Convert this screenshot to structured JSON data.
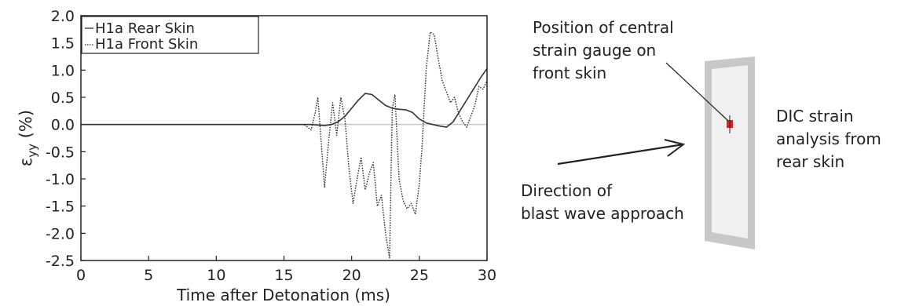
{
  "chart_data": {
    "type": "line",
    "xlabel": "Time after Detonation (ms)",
    "ylabel": "ε",
    "ylabel_subscript": "yy",
    "ylabel_unit": "(%)",
    "xlim": [
      0,
      30
    ],
    "ylim": [
      -2.5,
      2.0
    ],
    "x_ticks": [
      "0",
      "5",
      "10",
      "15",
      "20",
      "25",
      "30"
    ],
    "y_ticks": [
      "2.0",
      "1.5",
      "1.0",
      "0.5",
      "0.0",
      "-0.5",
      "-1.0",
      "-1.5",
      "-2.0",
      "-2.5"
    ],
    "grid": false,
    "legend_position": "top-left",
    "series": [
      {
        "name": "H1a Rear Skin",
        "style": "solid",
        "x": [
          0,
          16,
          17,
          18,
          18.5,
          19,
          19.5,
          20,
          20.5,
          21,
          21.5,
          22,
          22.5,
          23,
          23.5,
          24,
          24.5,
          25,
          25.5,
          26,
          26.5,
          27,
          27.5,
          28,
          28.5,
          29,
          29.5,
          30
        ],
        "y": [
          0,
          0,
          0,
          -0.02,
          0,
          0.05,
          0.15,
          0.3,
          0.45,
          0.57,
          0.55,
          0.45,
          0.35,
          0.3,
          0.28,
          0.27,
          0.22,
          0.1,
          0.03,
          0,
          -0.03,
          -0.05,
          0.05,
          0.25,
          0.45,
          0.65,
          0.85,
          1.03
        ]
      },
      {
        "name": "H1a Front Skin",
        "style": "dotted",
        "x": [
          0,
          16.5,
          17,
          17.3,
          17.5,
          17.8,
          18,
          18.3,
          18.6,
          18.9,
          19.2,
          19.5,
          19.8,
          20.1,
          20.4,
          20.7,
          21,
          21.3,
          21.6,
          21.9,
          22.2,
          22.5,
          22.8,
          23,
          23.2,
          23.5,
          23.8,
          24.1,
          24.4,
          24.7,
          25,
          25.2,
          25.5,
          25.8,
          26.1,
          26.4,
          26.7,
          27,
          27.3,
          27.6,
          27.9,
          28.2,
          28.5,
          28.8,
          29.1,
          29.4,
          29.7,
          30
        ],
        "y": [
          0,
          0,
          -0.1,
          0.2,
          0.5,
          -0.5,
          -1.15,
          -0.3,
          0.4,
          -0.2,
          0.5,
          0.1,
          -0.8,
          -1.45,
          -1.0,
          -0.6,
          -1.2,
          -0.9,
          -0.7,
          -1.5,
          -1.3,
          -2.0,
          -2.45,
          0.3,
          0.55,
          -1.0,
          -1.4,
          -1.55,
          -1.45,
          -1.65,
          -1.1,
          -0.4,
          1.0,
          1.7,
          1.65,
          1.2,
          0.8,
          0.6,
          0.4,
          0.5,
          0.2,
          0.05,
          -0.05,
          0.15,
          0.35,
          0.7,
          0.65,
          0.8
        ]
      }
    ]
  },
  "annotations": {
    "gauge_line1": "Position of central",
    "gauge_line2": "strain gauge on",
    "gauge_line3": "front skin",
    "dic_line1": "DIC strain",
    "dic_line2": "analysis from",
    "dic_line3": "rear skin",
    "blast_line1": "Direction of",
    "blast_line2": "blast wave approach"
  },
  "colors": {
    "axis": "#222222",
    "rear_skin_line": "#333333",
    "front_skin_line": "#333333",
    "zero_line": "#c8c8c8",
    "panel_frame": "#c8c8c8",
    "panel_fill": "#f0f0f0",
    "gauge_marker": "#e02020"
  }
}
